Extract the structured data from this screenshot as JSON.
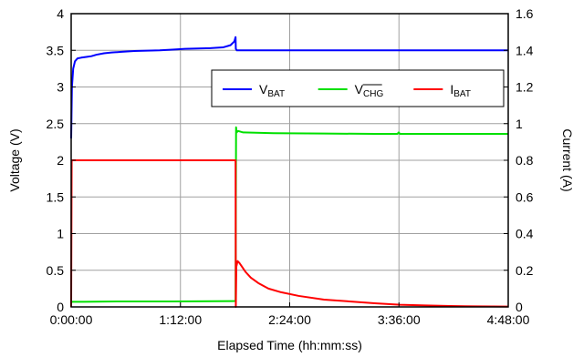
{
  "chart_data": {
    "type": "line",
    "xlabel": "Elapsed Time (hh:mm:ss)",
    "ylabel_left": "Voltage (V)",
    "ylabel_right": "Current (A)",
    "x_unit": "seconds",
    "xlim": [
      0,
      17280
    ],
    "ylim_left": [
      0,
      4
    ],
    "ylim_right": [
      0,
      1.6
    ],
    "x_ticks": [
      0,
      4320,
      8640,
      12960,
      17280
    ],
    "x_tick_labels": [
      "0:00:00",
      "1:12:00",
      "2:24:00",
      "3:36:00",
      "4:48:00"
    ],
    "y_left_ticks": [
      0,
      0.5,
      1,
      1.5,
      2,
      2.5,
      3,
      3.5,
      4
    ],
    "y_left_tick_labels": [
      "0",
      "0.5",
      "1",
      "1.5",
      "2",
      "2.5",
      "3",
      "3.5",
      "4"
    ],
    "y_right_ticks": [
      0,
      0.2,
      0.4,
      0.6,
      0.8,
      1,
      1.2,
      1.4,
      1.6
    ],
    "y_right_tick_labels": [
      "0",
      "0.2",
      "0.4",
      "0.6",
      "0.8",
      "1",
      "1.2",
      "1.4",
      "1.6"
    ],
    "grid": true,
    "legend_position": "top-right",
    "colors": {
      "vbat": "#0000ff",
      "vchg": "#00e000",
      "ibat": "#ff0000",
      "grid": "#a0a0a0"
    },
    "series": [
      {
        "name": "VBAT",
        "legend": {
          "main": "V",
          "sub": "BAT",
          "overline": false
        },
        "axis": "left",
        "color": "#0000ff",
        "x": [
          0,
          30,
          80,
          150,
          250,
          400,
          600,
          800,
          1000,
          1300,
          1600,
          2000,
          2500,
          3000,
          3500,
          4000,
          4500,
          5000,
          5500,
          6000,
          6300,
          6450,
          6500,
          6510,
          6550,
          8000,
          10000,
          12000,
          14000,
          16000,
          17280
        ],
        "y": [
          2.3,
          3.0,
          3.25,
          3.35,
          3.39,
          3.4,
          3.41,
          3.42,
          3.44,
          3.46,
          3.47,
          3.48,
          3.49,
          3.495,
          3.5,
          3.51,
          3.52,
          3.525,
          3.53,
          3.54,
          3.57,
          3.62,
          3.68,
          3.52,
          3.5,
          3.5,
          3.5,
          3.5,
          3.5,
          3.5,
          3.5
        ]
      },
      {
        "name": "VCHG",
        "legend": {
          "main": "V",
          "sub": "CHG",
          "overline": true
        },
        "axis": "left",
        "color": "#00e000",
        "x": [
          0,
          40,
          500,
          2000,
          4000,
          6500,
          6520,
          6540,
          6600,
          6800,
          8000,
          10000,
          12000,
          12900,
          12950,
          13000,
          14000,
          16000,
          17280
        ],
        "y": [
          0.06,
          0.07,
          0.07,
          0.075,
          0.075,
          0.08,
          2.45,
          2.38,
          2.4,
          2.38,
          2.37,
          2.365,
          2.36,
          2.36,
          2.38,
          2.36,
          2.36,
          2.36,
          2.36
        ]
      },
      {
        "name": "IBAT",
        "legend": {
          "main": "I",
          "sub": "BAT",
          "overline": false
        },
        "axis": "right",
        "color": "#ff0000",
        "x": [
          0,
          20,
          6500,
          6510,
          6530,
          6580,
          6650,
          6750,
          6900,
          7100,
          7400,
          7800,
          8300,
          9000,
          10000,
          11000,
          12000,
          13000,
          14000,
          15000,
          16000,
          17280
        ],
        "y": [
          0,
          0.8,
          0.8,
          0.0,
          0.22,
          0.25,
          0.24,
          0.22,
          0.19,
          0.16,
          0.13,
          0.1,
          0.08,
          0.06,
          0.04,
          0.03,
          0.02,
          0.012,
          0.008,
          0.005,
          0.003,
          0.002
        ]
      }
    ]
  }
}
